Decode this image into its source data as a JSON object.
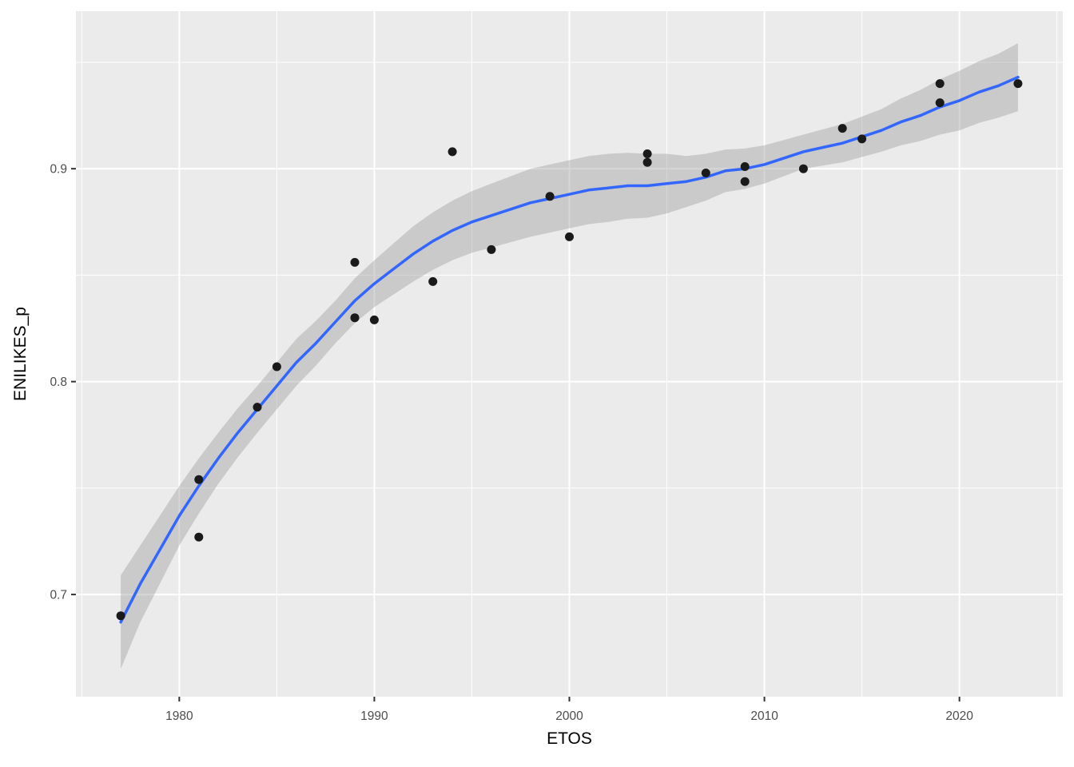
{
  "chart_data": {
    "type": "scatter",
    "subtype": "scatter-with-loess-smooth-and-confidence-band",
    "title": "",
    "xlabel": "ETOS",
    "ylabel": "ENILIKES_p",
    "legend": "none",
    "grid": "white major and minor gridlines on grey panel (ggplot2 theme_grey)",
    "x_domain": [
      1974.7,
      2025.3
    ],
    "y_domain": [
      0.652,
      0.974
    ],
    "x_major_ticks": [
      1980,
      1990,
      2000,
      2010,
      2020
    ],
    "x_tick_labels": [
      "1980",
      "1990",
      "2000",
      "2010",
      "2020"
    ],
    "x_minor_ticks": [
      1975,
      1985,
      1995,
      2005,
      2015,
      2025
    ],
    "y_major_ticks": [
      0.7,
      0.8,
      0.9
    ],
    "y_tick_labels": [
      "0.7",
      "0.8",
      "0.9"
    ],
    "y_minor_ticks": [
      0.75,
      0.85,
      0.95
    ],
    "points": [
      [
        1977,
        0.69
      ],
      [
        1981,
        0.754
      ],
      [
        1981,
        0.727
      ],
      [
        1984,
        0.788
      ],
      [
        1985,
        0.807
      ],
      [
        1989,
        0.856
      ],
      [
        1989,
        0.83
      ],
      [
        1990,
        0.829
      ],
      [
        1993,
        0.847
      ],
      [
        1994,
        0.908
      ],
      [
        1996,
        0.862
      ],
      [
        1999,
        0.887
      ],
      [
        2000,
        0.868
      ],
      [
        2004,
        0.907
      ],
      [
        2004,
        0.903
      ],
      [
        2007,
        0.898
      ],
      [
        2009,
        0.901
      ],
      [
        2009,
        0.894
      ],
      [
        2012,
        0.9
      ],
      [
        2014,
        0.919
      ],
      [
        2015,
        0.914
      ],
      [
        2019,
        0.94
      ],
      [
        2019,
        0.931
      ],
      [
        2023,
        0.94
      ]
    ],
    "smooth": {
      "method": "loess",
      "years": [
        1977,
        1978,
        1979,
        1980,
        1981,
        1982,
        1983,
        1984,
        1985,
        1986,
        1987,
        1988,
        1989,
        1990,
        1991,
        1992,
        1993,
        1994,
        1995,
        1996,
        1997,
        1998,
        1999,
        2000,
        2001,
        2002,
        2003,
        2004,
        2005,
        2006,
        2007,
        2008,
        2009,
        2010,
        2011,
        2012,
        2013,
        2014,
        2015,
        2016,
        2017,
        2018,
        2019,
        2020,
        2021,
        2022,
        2023
      ],
      "fit": [
        0.687,
        0.705,
        0.721,
        0.737,
        0.751,
        0.764,
        0.776,
        0.787,
        0.798,
        0.809,
        0.818,
        0.828,
        0.838,
        0.846,
        0.853,
        0.86,
        0.866,
        0.871,
        0.875,
        0.878,
        0.881,
        0.884,
        0.886,
        0.888,
        0.89,
        0.891,
        0.892,
        0.892,
        0.893,
        0.894,
        0.896,
        0.899,
        0.9,
        0.902,
        0.905,
        0.908,
        0.91,
        0.912,
        0.915,
        0.918,
        0.922,
        0.925,
        0.929,
        0.932,
        0.936,
        0.939,
        0.943
      ],
      "ci_halfwidth": [
        0.022,
        0.018,
        0.016,
        0.014,
        0.013,
        0.012,
        0.0115,
        0.011,
        0.011,
        0.011,
        0.0105,
        0.01,
        0.0105,
        0.011,
        0.012,
        0.013,
        0.0135,
        0.014,
        0.0145,
        0.015,
        0.0155,
        0.016,
        0.016,
        0.016,
        0.016,
        0.016,
        0.0155,
        0.015,
        0.014,
        0.012,
        0.011,
        0.01,
        0.0095,
        0.009,
        0.0085,
        0.008,
        0.0085,
        0.009,
        0.0095,
        0.01,
        0.011,
        0.012,
        0.013,
        0.014,
        0.0145,
        0.015,
        0.016
      ]
    },
    "colors": {
      "figure_background": "#FFFFFF",
      "panel_background": "#EBEBEB",
      "gridline": "#FFFFFF",
      "smooth_line": "#3366FF",
      "ci_band": "#999999",
      "ci_band_alpha": 0.4,
      "point": "#1A1A1A",
      "tick": "#333333",
      "tick_label": "#4D4D4D",
      "axis_title": "#000000"
    }
  }
}
